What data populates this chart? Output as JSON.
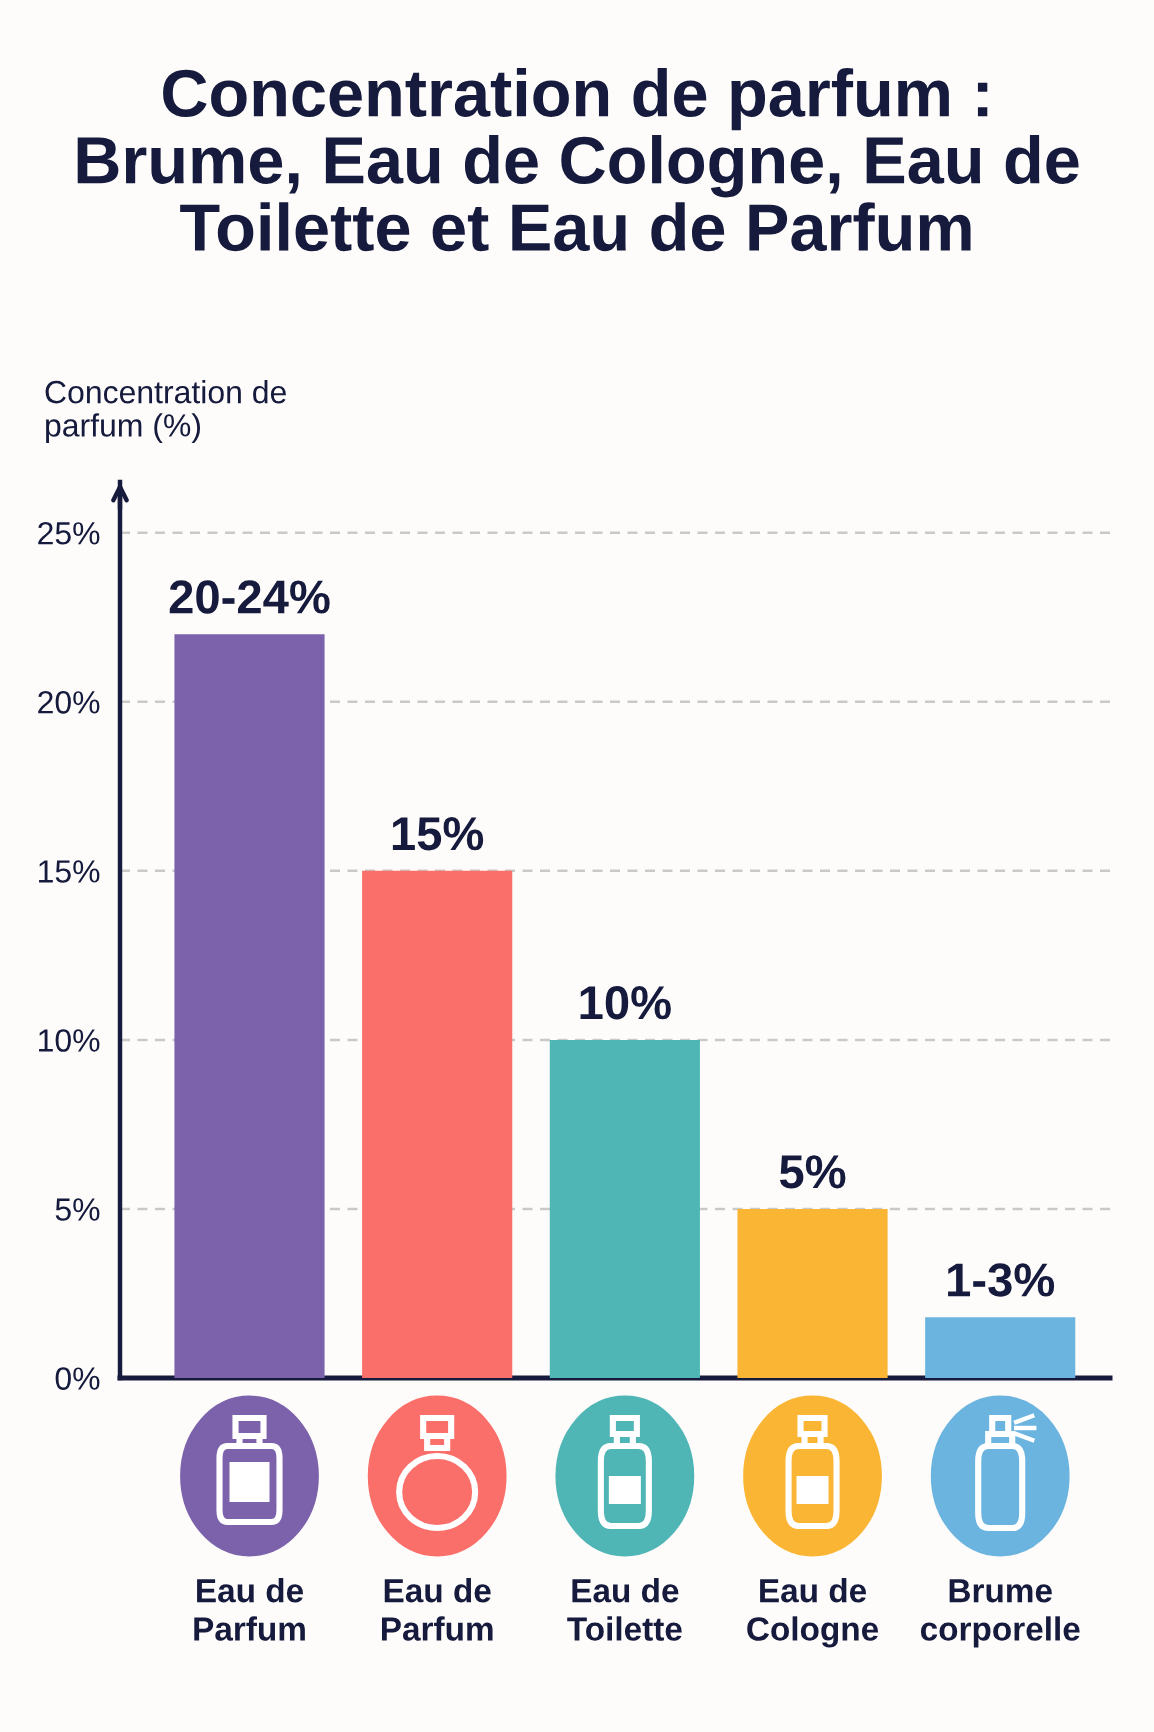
{
  "chart_data": {
    "type": "bar",
    "title": "Concentration de parfum :\nBrume, Eau de Cologne, Eau de\nToilette et Eau de Parfum",
    "ylabel": "Concentration de\nparfum (%)",
    "categories": [
      "Eau de\nParfum",
      "Eau de\nParfum",
      "Eau de\nToilette",
      "Eau de\nCologne",
      "Brume\ncorporelle"
    ],
    "values": [
      22,
      15,
      10,
      5,
      1.8
    ],
    "colors": [
      "#7b62ab",
      "#fb6f6a",
      "#4fb5b5",
      "#fbb534",
      "#6cb4e0"
    ],
    "value_labels": [
      null,
      "15%",
      "10%",
      "5%",
      null
    ],
    "annotations": [
      {
        "text": "20-24%",
        "x": "Eau de\nParfum",
        "y": 22
      },
      {
        "text": "1-3%",
        "x": "Brume\ncorporelle",
        "y": 1.8
      }
    ],
    "ylim": [
      0,
      26.5
    ],
    "yticks": [
      {
        "value": 0,
        "label": "0%"
      },
      {
        "value": 5,
        "label": "5%"
      },
      {
        "value": 10,
        "label": "10%"
      },
      {
        "value": 15,
        "label": "15%"
      },
      {
        "value": 20,
        "label": "20%"
      },
      {
        "value": 25,
        "label": "25%"
      }
    ],
    "grid": "y"
  }
}
